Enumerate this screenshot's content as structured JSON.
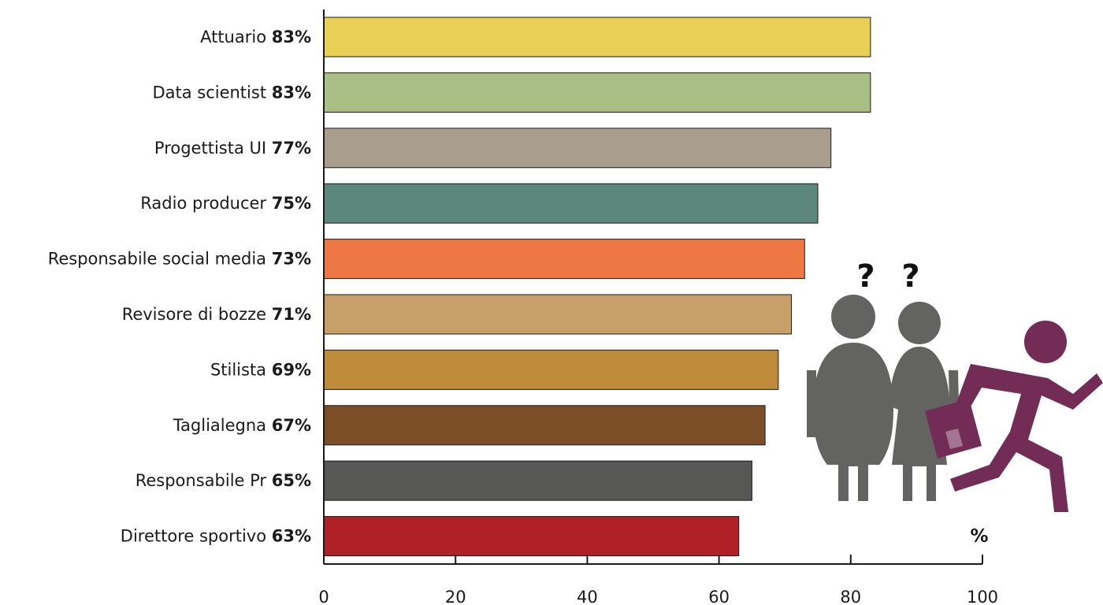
{
  "chart_data": {
    "type": "bar",
    "orientation": "horizontal",
    "categories": [
      "Attuario",
      "Data scientist",
      "Progettista UI",
      "Radio producer",
      "Responsabile social media",
      "Revisore di bozze",
      "Stilista",
      "Taglialegna",
      "Responsabile Pr",
      "Direttore sportivo"
    ],
    "values": [
      83,
      83,
      77,
      75,
      73,
      71,
      69,
      67,
      65,
      63
    ],
    "value_labels": [
      "83%",
      "83%",
      "77%",
      "75%",
      "73%",
      "71%",
      "69%",
      "67%",
      "65%",
      "63%"
    ],
    "bar_colors": [
      "#e9cf55",
      "#a9bf86",
      "#a99d8d",
      "#5b877c",
      "#ee7743",
      "#c99f69",
      "#bf8c3c",
      "#7c4e27",
      "#575756",
      "#b02127"
    ],
    "xlim": [
      0,
      100
    ],
    "x_ticks": [
      0,
      20,
      40,
      60,
      80,
      100
    ],
    "x_tick_labels": [
      "0",
      "20",
      "40",
      "60",
      "80",
      "100"
    ],
    "unit_label": "%",
    "grid": false,
    "legend": "none"
  },
  "illustration": {
    "icons": [
      "question-mark-icon",
      "confused-man-icon",
      "confused-woman-icon",
      "running-worker-with-briefcase-icon"
    ],
    "question_mark": "?",
    "people_color": "#636362",
    "runner_color": "#722c55"
  }
}
